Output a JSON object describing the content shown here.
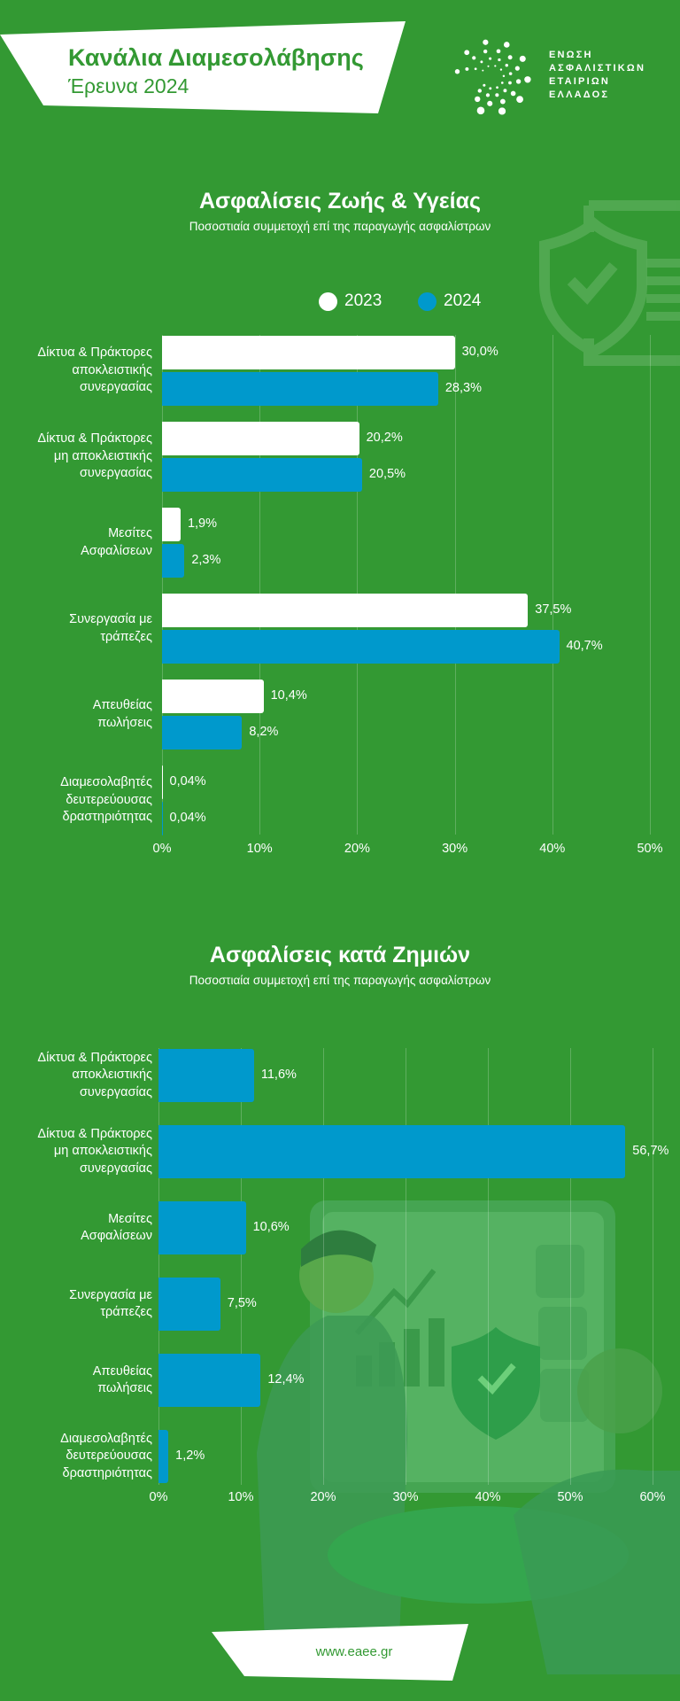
{
  "header": {
    "title": "Κανάλια Διαμεσολάβησης",
    "subtitle": "Έρευνα 2024",
    "logo_text": "ΕΝΩΣΗ\nΑΣΦΑΛΙΣΤΙΚΩΝ\nΕΤΑΙΡΙΩΝ\nΕΛΛΑΔΟΣ"
  },
  "colors": {
    "background": "#339933",
    "series_2023": "#FFFFFF",
    "series_2024": "#0099CC"
  },
  "footer": {
    "url": "www.eaee.gr"
  },
  "chart_data": [
    {
      "type": "bar",
      "orientation": "horizontal",
      "title": "Ασφαλίσεις Ζωής & Υγείας",
      "subtitle": "Ποσοστιαία συμμετοχή επί της παραγωγής ασφαλίστρων",
      "categories": [
        "Δίκτυα & Πράκτορες\nαποκλειστικής\nσυνεργασίας",
        "Δίκτυα & Πράκτορες\nμη αποκλειστικής\nσυνεργασίας",
        "Μεσίτες\nΑσφαλίσεων",
        "Συνεργασία με\nτράπεζες",
        "Απευθείας\nπωλήσεις",
        "Διαμεσολαβητές\nδευτερεύουσας\nδραστηριότητας"
      ],
      "series": [
        {
          "name": "2023",
          "color": "#FFFFFF",
          "values": [
            30.0,
            20.2,
            1.9,
            37.5,
            10.4,
            0.04
          ],
          "labels": [
            "30,0%",
            "20,2%",
            "1,9%",
            "37,5%",
            "10,4%",
            "0,04%"
          ]
        },
        {
          "name": "2024",
          "color": "#0099CC",
          "values": [
            28.3,
            20.5,
            2.3,
            40.7,
            8.2,
            0.04
          ],
          "labels": [
            "28,3%",
            "20,5%",
            "2,3%",
            "40,7%",
            "8,2%",
            "0,04%"
          ]
        }
      ],
      "xlim": [
        0,
        50
      ],
      "xticks": [
        "0%",
        "10%",
        "20%",
        "30%",
        "40%",
        "50%"
      ],
      "grid": true,
      "legend": "top"
    },
    {
      "type": "bar",
      "orientation": "horizontal",
      "title": "Ασφαλίσεις κατά Ζημιών",
      "subtitle": "Ποσοστιαία συμμετοχή επί της παραγωγής ασφαλίστρων",
      "categories": [
        "Δίκτυα & Πράκτορες\nαποκλειστικής\nσυνεργασίας",
        "Δίκτυα & Πράκτορες\nμη αποκλειστικής\nσυνεργασίας",
        "Μεσίτες\nΑσφαλίσεων",
        "Συνεργασία με\nτράπεζες",
        "Απευθείας\nπωλήσεις",
        "Διαμεσολαβητές\nδευτερεύουσας\nδραστηριότητας"
      ],
      "series": [
        {
          "color": "#0099CC",
          "values": [
            11.6,
            56.7,
            10.6,
            7.5,
            12.4,
            1.2
          ],
          "labels": [
            "11,6%",
            "56,7%",
            "10,6%",
            "7,5%",
            "12,4%",
            "1,2%"
          ]
        }
      ],
      "xlim": [
        0,
        60
      ],
      "xticks": [
        "0%",
        "10%",
        "20%",
        "30%",
        "40%",
        "50%",
        "60%"
      ],
      "grid": true
    }
  ]
}
